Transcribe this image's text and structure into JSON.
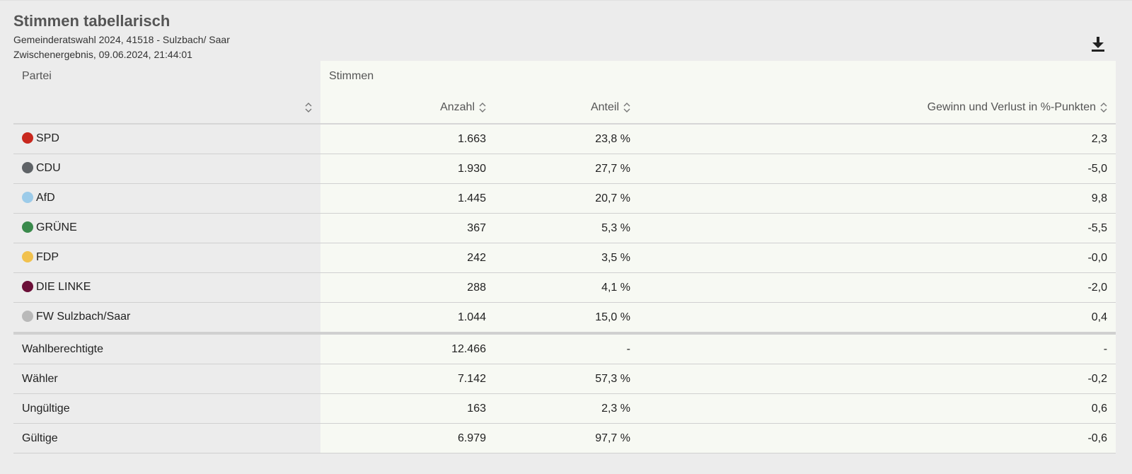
{
  "header": {
    "title": "Stimmen tabellarisch",
    "subtitle_election": "Gemeinderatswahl 2024, 41518 - Sulzbach/ Saar",
    "subtitle_status": "Zwischenergebnis, 09.06.2024, 21:44:01",
    "download_icon": "download-icon"
  },
  "table": {
    "col_party": "Partei",
    "col_group": "Stimmen",
    "col_count": "Anzahl",
    "col_share": "Anteil",
    "col_change": "Gewinn und Verlust in %-Punkten",
    "sort_icon": "sort-icon",
    "parties": [
      {
        "name": "SPD",
        "color": "#c8281e",
        "count": "1.663",
        "share": "23,8 %",
        "change": "2,3"
      },
      {
        "name": "CDU",
        "color": "#5f6367",
        "count": "1.930",
        "share": "27,7 %",
        "change": "-5,0"
      },
      {
        "name": "AfD",
        "color": "#9ccbe9",
        "count": "1.445",
        "share": "20,7 %",
        "change": "9,8"
      },
      {
        "name": "GRÜNE",
        "color": "#3a8a4c",
        "count": "367",
        "share": "5,3 %",
        "change": "-5,5"
      },
      {
        "name": "FDP",
        "color": "#f1c14e",
        "count": "242",
        "share": "3,5 %",
        "change": "-0,0"
      },
      {
        "name": "DIE LINKE",
        "color": "#6b0f38",
        "count": "288",
        "share": "4,1 %",
        "change": "-2,0"
      },
      {
        "name": "FW Sulzbach/Saar",
        "color": "#b9b9b9",
        "count": "1.044",
        "share": "15,0 %",
        "change": "0,4"
      }
    ],
    "summary": [
      {
        "name": "Wahlberechtigte",
        "count": "12.466",
        "share": "-",
        "change": "-"
      },
      {
        "name": "Wähler",
        "count": "7.142",
        "share": "57,3 %",
        "change": "-0,2"
      },
      {
        "name": "Ungültige",
        "count": "163",
        "share": "2,3 %",
        "change": "0,6"
      },
      {
        "name": "Gültige",
        "count": "6.979",
        "share": "97,7 %",
        "change": "-0,6"
      }
    ]
  }
}
